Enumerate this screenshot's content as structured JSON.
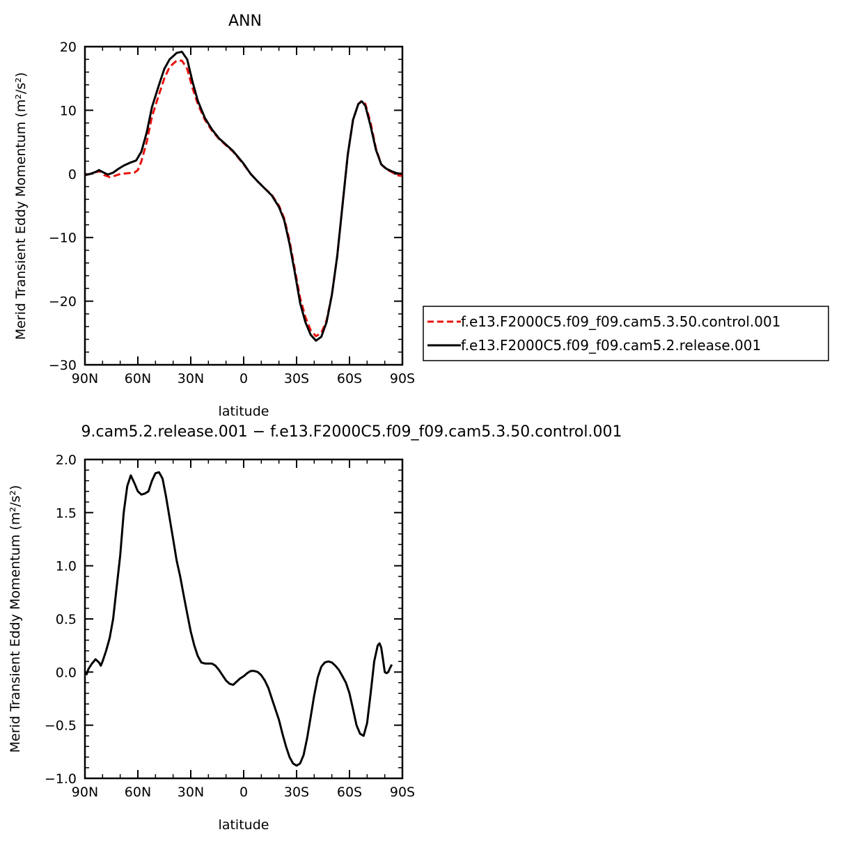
{
  "chart_data": [
    {
      "type": "line",
      "title": "ANN",
      "xlabel": "latitude",
      "ylabel": "Merid Transient Eddy Momentum (m²/s²)",
      "xlim": [
        90,
        -90
      ],
      "ylim": [
        -30,
        20
      ],
      "x_ticks": [
        90,
        60,
        30,
        0,
        -30,
        -60,
        -90
      ],
      "x_tick_labels": [
        "90N",
        "60N",
        "30N",
        "0",
        "30S",
        "60S",
        "90S"
      ],
      "y_ticks": [
        -30,
        -20,
        -10,
        0,
        10,
        20
      ],
      "y_tick_labels": [
        "−30",
        "−20",
        "−10",
        "0",
        "10",
        "20"
      ],
      "legend_position": "right",
      "series": [
        {
          "name": "f.e13.F2000C5.f09_f09.cam5.3.50.control.001",
          "color": "#e8120f",
          "dash": "dashed",
          "points": [
            [
              90,
              -0.2
            ],
            [
              87,
              0.0
            ],
            [
              84,
              0.3
            ],
            [
              81,
              0.4
            ],
            [
              79,
              -0.2
            ],
            [
              76,
              -0.5
            ],
            [
              73,
              -0.3
            ],
            [
              70,
              0.0
            ],
            [
              66,
              0.1
            ],
            [
              62,
              0.2
            ],
            [
              60,
              0.6
            ],
            [
              58,
              2.0
            ],
            [
              55,
              5.0
            ],
            [
              52,
              9.0
            ],
            [
              48,
              12.5
            ],
            [
              45,
              15.0
            ],
            [
              42,
              16.8
            ],
            [
              38,
              17.8
            ],
            [
              35,
              17.8
            ],
            [
              32,
              16.5
            ],
            [
              29,
              13.5
            ],
            [
              26,
              11.0
            ],
            [
              22,
              8.5
            ],
            [
              18,
              6.8
            ],
            [
              14,
              5.5
            ],
            [
              10,
              4.5
            ],
            [
              6,
              3.5
            ],
            [
              3,
              2.5
            ],
            [
              0,
              1.5
            ],
            [
              -4,
              0.0
            ],
            [
              -8,
              -1.2
            ],
            [
              -12,
              -2.3
            ],
            [
              -16,
              -3.3
            ],
            [
              -20,
              -5.0
            ],
            [
              -23,
              -7.0
            ],
            [
              -26,
              -10.5
            ],
            [
              -29,
              -15.0
            ],
            [
              -32,
              -19.5
            ],
            [
              -35,
              -22.5
            ],
            [
              -38,
              -24.6
            ],
            [
              -41,
              -25.5
            ],
            [
              -44,
              -25.0
            ],
            [
              -47,
              -23.0
            ],
            [
              -50,
              -19.0
            ],
            [
              -53,
              -13.0
            ],
            [
              -56,
              -5.0
            ],
            [
              -59,
              3.0
            ],
            [
              -62,
              8.5
            ],
            [
              -65,
              11.0
            ],
            [
              -67,
              11.5
            ],
            [
              -69,
              11.0
            ],
            [
              -72,
              8.0
            ],
            [
              -75,
              4.0
            ],
            [
              -78,
              1.5
            ],
            [
              -81,
              0.7
            ],
            [
              -84,
              0.3
            ],
            [
              -87,
              -0.2
            ],
            [
              -89,
              -0.3
            ],
            [
              -90,
              0.4
            ]
          ]
        },
        {
          "name": "f.e13.F2000C5.f09_f09.cam5.2.release.001",
          "color": "#000000",
          "dash": "solid",
          "points": [
            [
              90,
              -0.2
            ],
            [
              87,
              0.0
            ],
            [
              84,
              0.3
            ],
            [
              82,
              0.6
            ],
            [
              80,
              0.3
            ],
            [
              77,
              -0.1
            ],
            [
              74,
              0.2
            ],
            [
              71,
              0.8
            ],
            [
              68,
              1.3
            ],
            [
              64,
              1.8
            ],
            [
              61,
              2.1
            ],
            [
              58,
              3.5
            ],
            [
              55,
              6.5
            ],
            [
              52,
              10.5
            ],
            [
              48,
              14.0
            ],
            [
              45,
              16.5
            ],
            [
              42,
              18.0
            ],
            [
              38,
              19.0
            ],
            [
              35,
              19.2
            ],
            [
              32,
              18.0
            ],
            [
              29,
              14.5
            ],
            [
              26,
              11.5
            ],
            [
              22,
              8.8
            ],
            [
              18,
              7.0
            ],
            [
              14,
              5.6
            ],
            [
              10,
              4.6
            ],
            [
              6,
              3.6
            ],
            [
              3,
              2.6
            ],
            [
              0,
              1.6
            ],
            [
              -4,
              0.0
            ],
            [
              -8,
              -1.2
            ],
            [
              -12,
              -2.3
            ],
            [
              -16,
              -3.4
            ],
            [
              -20,
              -5.2
            ],
            [
              -23,
              -7.3
            ],
            [
              -26,
              -11.0
            ],
            [
              -29,
              -15.5
            ],
            [
              -32,
              -20.3
            ],
            [
              -35,
              -23.3
            ],
            [
              -38,
              -25.3
            ],
            [
              -41,
              -26.2
            ],
            [
              -44,
              -25.6
            ],
            [
              -47,
              -23.3
            ],
            [
              -50,
              -19.0
            ],
            [
              -53,
              -13.0
            ],
            [
              -56,
              -5.0
            ],
            [
              -59,
              3.0
            ],
            [
              -62,
              8.5
            ],
            [
              -65,
              11.0
            ],
            [
              -67,
              11.4
            ],
            [
              -69,
              10.7
            ],
            [
              -72,
              7.5
            ],
            [
              -75,
              3.8
            ],
            [
              -78,
              1.5
            ],
            [
              -81,
              0.8
            ],
            [
              -84,
              0.4
            ],
            [
              -87,
              0.1
            ],
            [
              -90,
              0.0
            ]
          ]
        }
      ]
    },
    {
      "type": "line",
      "title": "9.cam5.2.release.001 − f.e13.F2000C5.f09_f09.cam5.3.50.control.001",
      "xlabel": "latitude",
      "ylabel": "Merid Transient Eddy Momentum (m²/s²)",
      "xlim": [
        90,
        -90
      ],
      "ylim": [
        -1.0,
        2.0
      ],
      "x_ticks": [
        90,
        60,
        30,
        0,
        -30,
        -60,
        -90
      ],
      "x_tick_labels": [
        "90N",
        "60N",
        "30N",
        "0",
        "30S",
        "60S",
        "90S"
      ],
      "y_ticks": [
        -1.0,
        -0.5,
        0.0,
        0.5,
        1.0,
        1.5,
        2.0
      ],
      "y_tick_labels": [
        "−1.0",
        "−0.5",
        "0.0",
        "0.5",
        "1.0",
        "1.5",
        "2.0"
      ],
      "series": [
        {
          "color": "#000000",
          "dash": "solid",
          "points": [
            [
              90,
              0.0
            ],
            [
              89,
              -0.02
            ],
            [
              88,
              0.03
            ],
            [
              86,
              0.08
            ],
            [
              85,
              0.1
            ],
            [
              84,
              0.12
            ],
            [
              82,
              0.09
            ],
            [
              81,
              0.06
            ],
            [
              80,
              0.1
            ],
            [
              78,
              0.2
            ],
            [
              76,
              0.32
            ],
            [
              74,
              0.5
            ],
            [
              72,
              0.8
            ],
            [
              70,
              1.1
            ],
            [
              68,
              1.5
            ],
            [
              66,
              1.75
            ],
            [
              64,
              1.85
            ],
            [
              62,
              1.78
            ],
            [
              60,
              1.7
            ],
            [
              58,
              1.67
            ],
            [
              56,
              1.68
            ],
            [
              54,
              1.7
            ],
            [
              52,
              1.8
            ],
            [
              50,
              1.87
            ],
            [
              48,
              1.88
            ],
            [
              46,
              1.82
            ],
            [
              44,
              1.65
            ],
            [
              42,
              1.45
            ],
            [
              40,
              1.25
            ],
            [
              38,
              1.05
            ],
            [
              36,
              0.9
            ],
            [
              34,
              0.72
            ],
            [
              32,
              0.55
            ],
            [
              30,
              0.38
            ],
            [
              28,
              0.25
            ],
            [
              26,
              0.15
            ],
            [
              24,
              0.09
            ],
            [
              22,
              0.08
            ],
            [
              20,
              0.08
            ],
            [
              18,
              0.08
            ],
            [
              16,
              0.06
            ],
            [
              14,
              0.02
            ],
            [
              12,
              -0.03
            ],
            [
              10,
              -0.08
            ],
            [
              8,
              -0.11
            ],
            [
              6,
              -0.12
            ],
            [
              4,
              -0.09
            ],
            [
              2,
              -0.06
            ],
            [
              0,
              -0.04
            ],
            [
              -2,
              -0.01
            ],
            [
              -4,
              0.01
            ],
            [
              -6,
              0.01
            ],
            [
              -8,
              0.0
            ],
            [
              -10,
              -0.03
            ],
            [
              -12,
              -0.08
            ],
            [
              -14,
              -0.15
            ],
            [
              -16,
              -0.25
            ],
            [
              -18,
              -0.35
            ],
            [
              -20,
              -0.45
            ],
            [
              -22,
              -0.58
            ],
            [
              -24,
              -0.7
            ],
            [
              -26,
              -0.8
            ],
            [
              -28,
              -0.86
            ],
            [
              -30,
              -0.88
            ],
            [
              -32,
              -0.86
            ],
            [
              -34,
              -0.78
            ],
            [
              -36,
              -0.62
            ],
            [
              -38,
              -0.42
            ],
            [
              -40,
              -0.22
            ],
            [
              -42,
              -0.05
            ],
            [
              -44,
              0.05
            ],
            [
              -46,
              0.09
            ],
            [
              -48,
              0.1
            ],
            [
              -50,
              0.09
            ],
            [
              -52,
              0.06
            ],
            [
              -54,
              0.02
            ],
            [
              -56,
              -0.04
            ],
            [
              -58,
              -0.1
            ],
            [
              -60,
              -0.2
            ],
            [
              -62,
              -0.35
            ],
            [
              -64,
              -0.5
            ],
            [
              -66,
              -0.58
            ],
            [
              -68,
              -0.6
            ],
            [
              -70,
              -0.48
            ],
            [
              -72,
              -0.2
            ],
            [
              -74,
              0.1
            ],
            [
              -76,
              0.25
            ],
            [
              -77,
              0.27
            ],
            [
              -78,
              0.23
            ],
            [
              -79,
              0.12
            ],
            [
              -80,
              0.0
            ],
            [
              -81,
              -0.01
            ],
            [
              -82,
              0.0
            ],
            [
              -83,
              0.04
            ],
            [
              -84,
              0.07
            ]
          ]
        }
      ]
    }
  ]
}
